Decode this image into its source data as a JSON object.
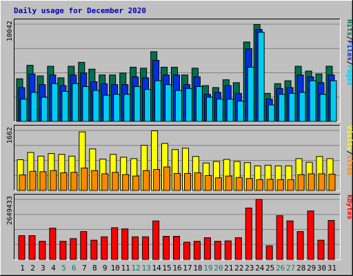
{
  "chart_data": {
    "type": "bar",
    "title": "Daily usage for December 2020",
    "categories": [
      "1",
      "2",
      "3",
      "4",
      "5",
      "6",
      "7",
      "8",
      "9",
      "10",
      "11",
      "12",
      "13",
      "14",
      "15",
      "16",
      "17",
      "18",
      "19",
      "20",
      "21",
      "22",
      "23",
      "24",
      "25",
      "26",
      "27",
      "28",
      "29",
      "30",
      "31"
    ],
    "weekend_days": [
      "5",
      "6",
      "12",
      "13",
      "19",
      "20",
      "26",
      "27"
    ],
    "panels": [
      {
        "name": "pages-files-hits",
        "max_label": "10042",
        "ylim": [
          0,
          10042
        ],
        "legend": [
          "Pages",
          "Files",
          "Hits"
        ],
        "series": [
          {
            "name": "Hits",
            "color": "#006f4f",
            "values": [
              4400,
              5800,
              4700,
              5700,
              4500,
              5700,
              6100,
              5400,
              4800,
              4800,
              5000,
              5600,
              5500,
              7200,
              5600,
              5600,
              4800,
              5500,
              3700,
              3500,
              4300,
              4000,
              8200,
              10000,
              2900,
              3900,
              4200,
              5700,
              5200,
              4900,
              5700
            ]
          },
          {
            "name": "Files",
            "color": "#0030e0",
            "values": [
              3500,
              4900,
              3800,
              4800,
              3700,
              4800,
              5000,
              4100,
              3900,
              3800,
              3800,
              4600,
              4500,
              6300,
              4800,
              4800,
              3800,
              4600,
              2800,
              3000,
              3700,
              2900,
              7500,
              9500,
              2300,
              3400,
              3500,
              4800,
              4600,
              4000,
              4800
            ]
          },
          {
            "name": "Pages",
            "color": "#00ccf0",
            "values": [
              2300,
              3000,
              2500,
              3900,
              3100,
              3900,
              3600,
              3200,
              2700,
              2800,
              2800,
              3600,
              3300,
              4200,
              3800,
              3200,
              3400,
              3600,
              2500,
              2300,
              2300,
              2100,
              5600,
              9200,
              1700,
              2800,
              2900,
              3000,
              4200,
              2800,
              4200
            ]
          }
        ]
      },
      {
        "name": "visits-sites",
        "max_label": "1662",
        "ylim": [
          0,
          1662
        ],
        "legend": [
          "Sites",
          "Visits"
        ],
        "series": [
          {
            "name": "Visits",
            "color": "#ffff00",
            "values": [
              850,
              1050,
              950,
              1020,
              1000,
              950,
              1620,
              1150,
              870,
              1000,
              920,
              880,
              1250,
              1650,
              1300,
              1130,
              1170,
              940,
              760,
              800,
              860,
              800,
              770,
              680,
              700,
              680,
              680,
              880,
              780,
              940,
              880
            ]
          },
          {
            "name": "Sites",
            "color": "#ff8800",
            "values": [
              430,
              530,
              520,
              550,
              490,
              500,
              620,
              550,
              460,
              500,
              440,
              400,
              550,
              580,
              650,
              470,
              470,
              490,
              410,
              350,
              400,
              360,
              330,
              300,
              310,
              300,
              300,
              440,
              460,
              460,
              450
            ]
          }
        ]
      },
      {
        "name": "kbytes",
        "max_label": "2649433",
        "ylim": [
          0,
          2649433
        ],
        "legend": [
          "KBytes"
        ],
        "series": [
          {
            "name": "KBytes",
            "color": "#ff0000",
            "values": [
              1050000,
              1050000,
              800000,
              1380000,
              800000,
              920000,
              1230000,
              850000,
              1000000,
              1400000,
              1350000,
              1000000,
              1000000,
              1700000,
              1020000,
              1020000,
              760000,
              800000,
              960000,
              800000,
              820000,
              960000,
              2270000,
              2649433,
              600000,
              1930000,
              1700000,
              1230000,
              2140000,
              850000,
              1720000
            ]
          }
        ]
      }
    ]
  }
}
